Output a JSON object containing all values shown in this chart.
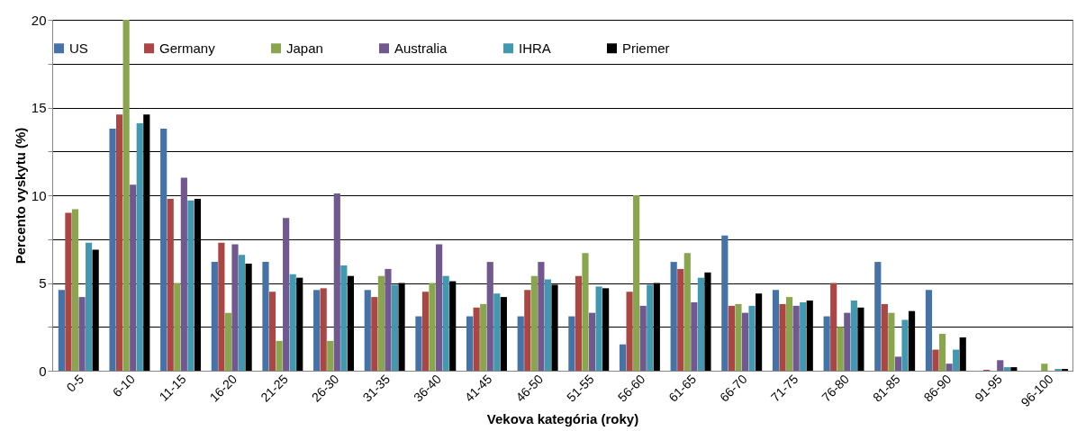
{
  "chart_data": {
    "type": "bar",
    "xlabel": "Vekova kategória (roky)",
    "ylabel": "Percento vyskytu (%)",
    "categories": [
      "0-5",
      "6-10",
      "11-15",
      "16-20",
      "21-25",
      "26-30",
      "31-35",
      "36-40",
      "41-45",
      "46-50",
      "51-55",
      "56-60",
      "61-65",
      "66-70",
      "71-75",
      "76-80",
      "81-85",
      "86-90",
      "91-95",
      "96-100"
    ],
    "series": [
      {
        "name": "US",
        "color": "#4572a7",
        "values": [
          4.6,
          13.8,
          13.8,
          6.2,
          6.2,
          4.6,
          4.6,
          3.1,
          3.1,
          3.1,
          3.1,
          1.5,
          6.2,
          7.7,
          4.6,
          3.1,
          6.2,
          4.6,
          0,
          0
        ]
      },
      {
        "name": "Germany",
        "color": "#aa4643",
        "values": [
          9.0,
          14.6,
          9.8,
          7.3,
          4.5,
          4.7,
          4.2,
          4.5,
          3.6,
          4.6,
          5.4,
          4.5,
          5.8,
          3.7,
          3.8,
          5.0,
          3.8,
          1.2,
          0.05,
          0
        ]
      },
      {
        "name": "Japan",
        "color": "#89a54e",
        "values": [
          9.2,
          20.0,
          5.0,
          3.3,
          1.7,
          1.7,
          5.4,
          5.0,
          3.8,
          5.4,
          6.7,
          10.0,
          6.7,
          3.8,
          4.2,
          2.5,
          3.3,
          2.1,
          0,
          0.4
        ]
      },
      {
        "name": "Australia",
        "color": "#71588f",
        "values": [
          4.2,
          10.6,
          11.0,
          7.2,
          8.7,
          10.1,
          5.8,
          7.2,
          6.2,
          6.2,
          3.3,
          3.7,
          3.9,
          3.3,
          3.7,
          3.3,
          0.8,
          0.4,
          0.6,
          0
        ]
      },
      {
        "name": "IHRA",
        "color": "#4198af",
        "values": [
          7.3,
          14.1,
          9.7,
          6.6,
          5.5,
          6.0,
          4.9,
          5.4,
          4.4,
          5.2,
          4.8,
          4.9,
          5.3,
          3.7,
          3.9,
          4.0,
          2.9,
          1.2,
          0.2,
          0.1
        ]
      },
      {
        "name": "Priemer",
        "color": "#000000",
        "values": [
          6.9,
          14.6,
          9.8,
          6.1,
          5.3,
          5.4,
          5.0,
          5.1,
          4.2,
          4.9,
          4.7,
          5.0,
          5.6,
          4.4,
          4.0,
          3.6,
          3.4,
          1.9,
          0.2,
          0.1
        ]
      }
    ],
    "ylim": [
      0,
      20
    ],
    "yticks": [
      0,
      {
        "value": 2.5,
        "label": null
      },
      5,
      {
        "value": 7.5,
        "label": null
      },
      10,
      {
        "value": 12.5,
        "label": null
      },
      15,
      {
        "value": 17.5,
        "label": null
      },
      20
    ],
    "grid": "y",
    "legend": "top"
  }
}
